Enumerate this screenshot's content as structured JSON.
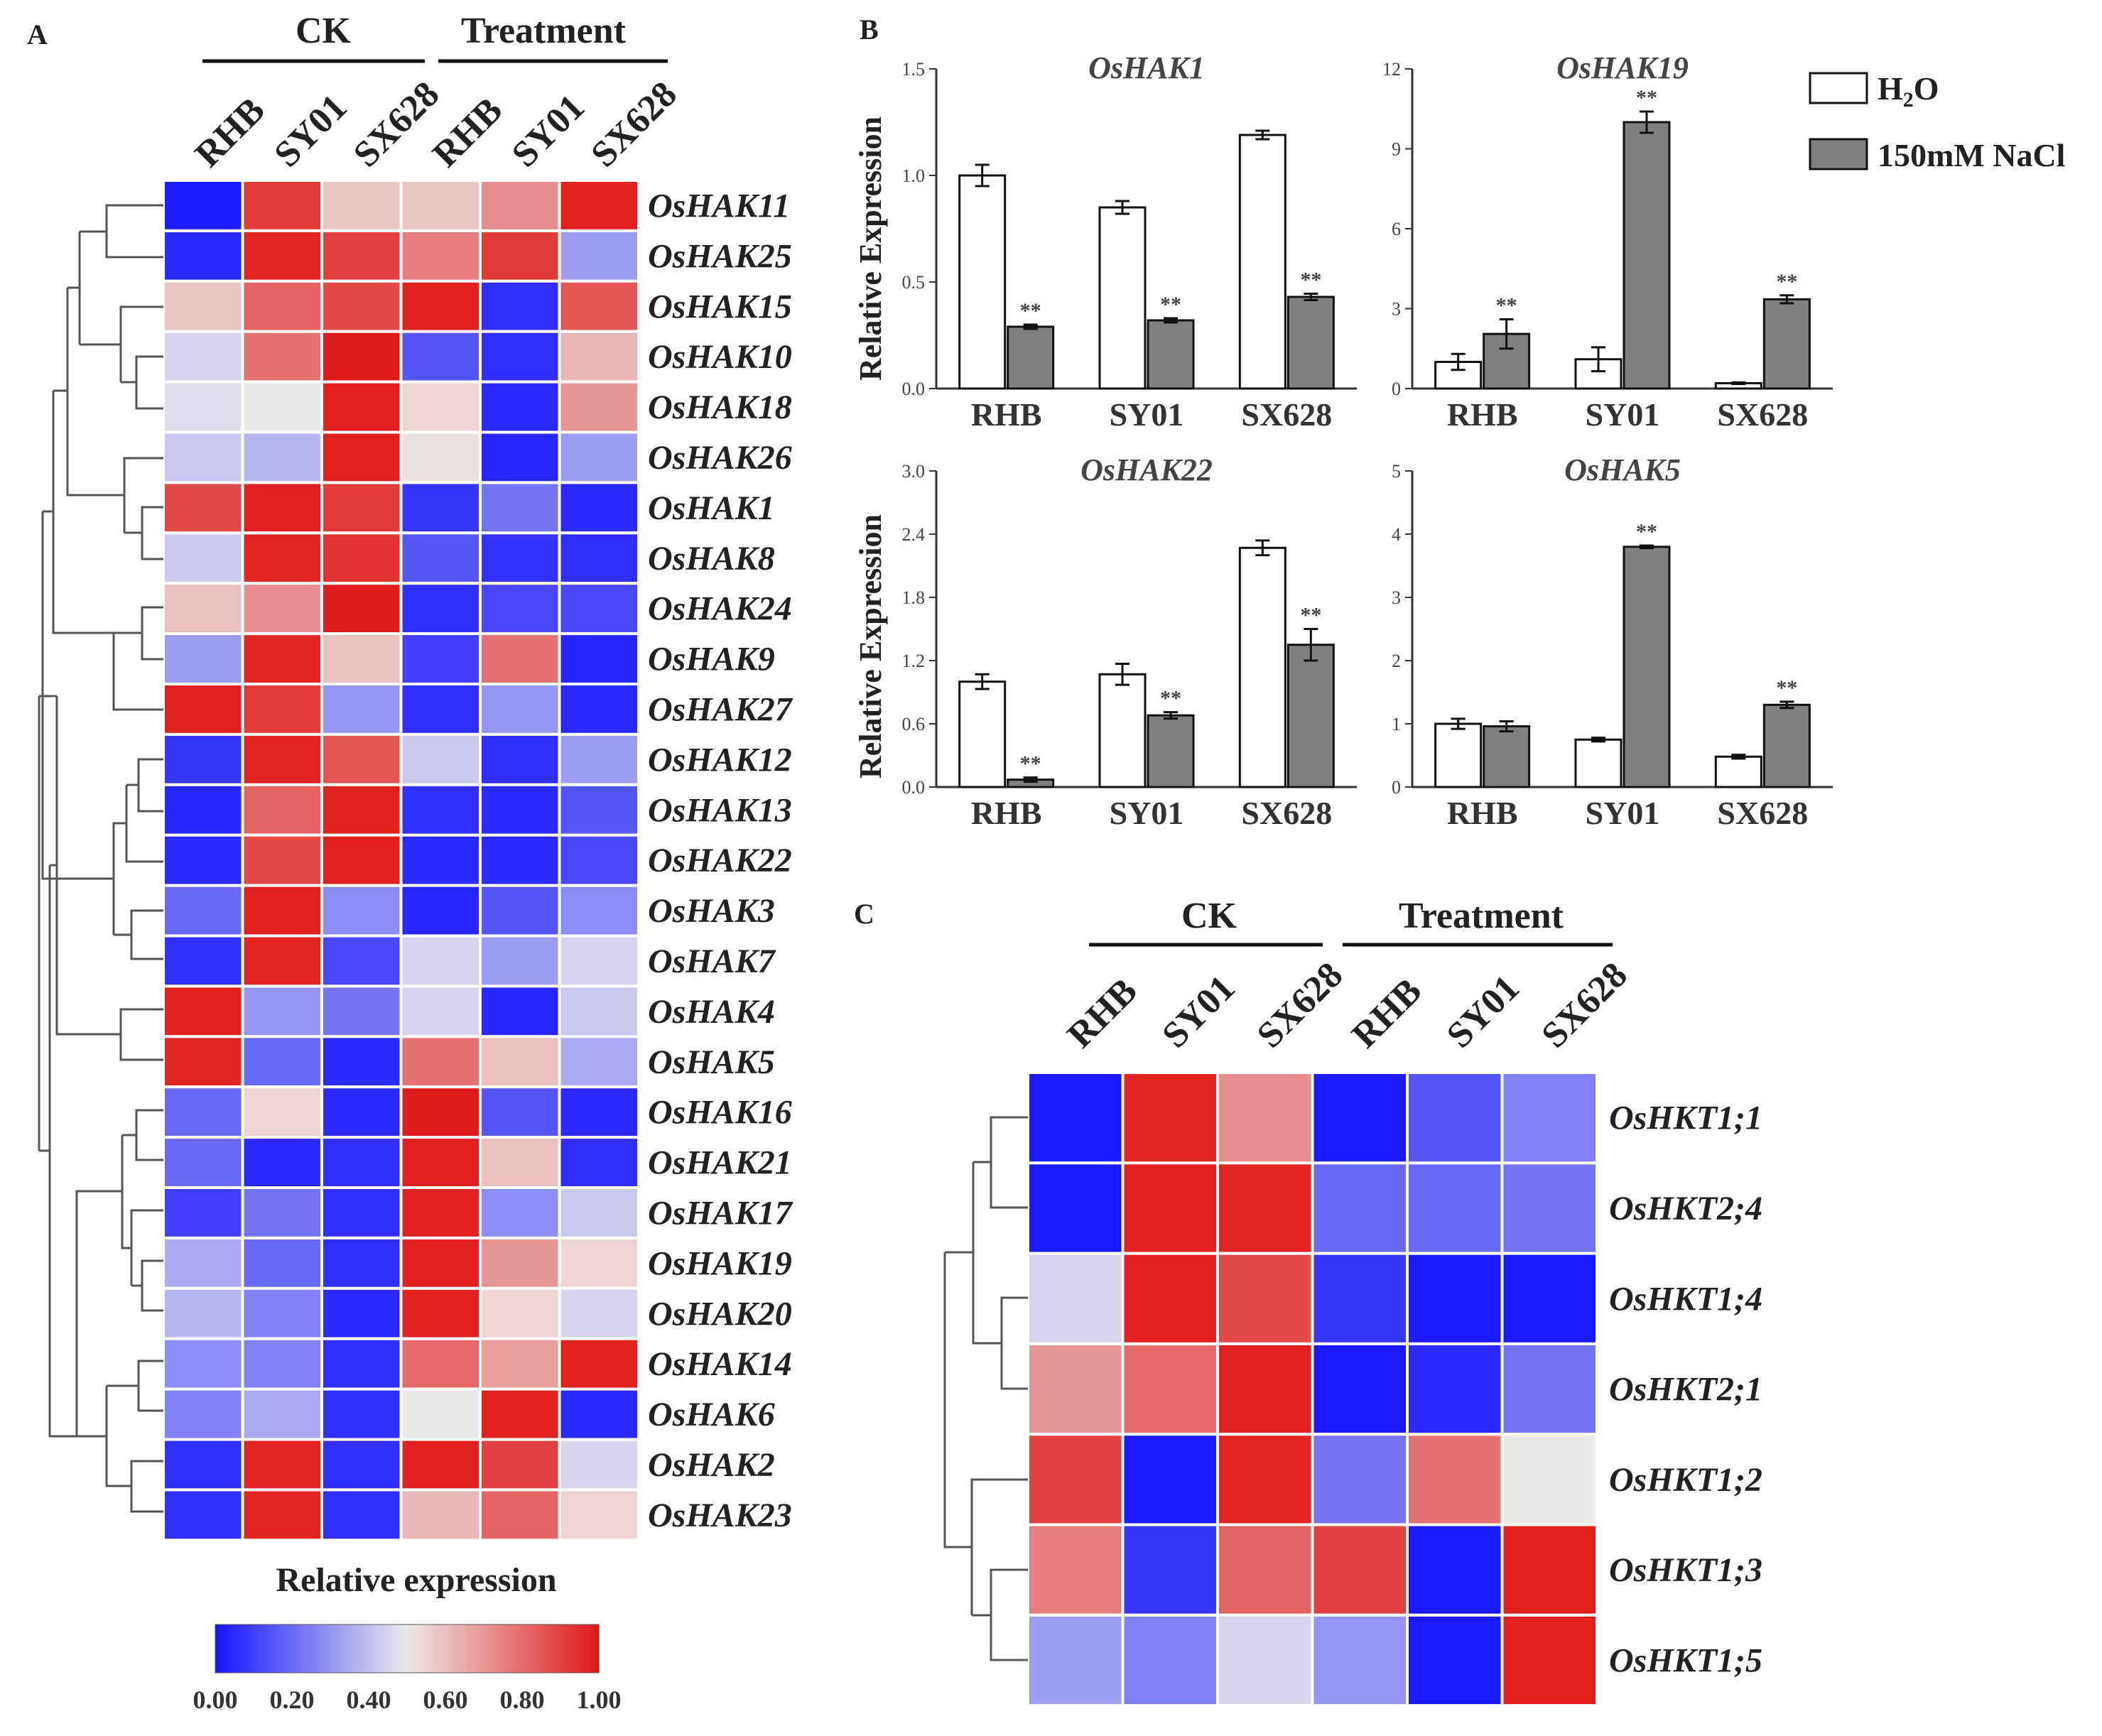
{
  "panels": {
    "a": "A",
    "b": "B",
    "c": "C"
  },
  "chart_data": [
    {
      "type": "heatmap",
      "panel": "A",
      "column_groups": [
        {
          "label": "CK"
        },
        {
          "label": "Treatment"
        }
      ],
      "columns": [
        "RHB",
        "SY01",
        "SX628",
        "RHB",
        "SY01",
        "SX628"
      ],
      "rows": [
        "OsHAK11",
        "OsHAK25",
        "OsHAK15",
        "OsHAK10",
        "OsHAK18",
        "OsHAK26",
        "OsHAK1",
        "OsHAK8",
        "OsHAK24",
        "OsHAK9",
        "OsHAK27",
        "OsHAK12",
        "OsHAK13",
        "OsHAK22",
        "OsHAK3",
        "OsHAK7",
        "OsHAK4",
        "OsHAK5",
        "OsHAK16",
        "OsHAK21",
        "OsHAK17",
        "OsHAK19",
        "OsHAK20",
        "OsHAK14",
        "OsHAK6",
        "OsHAK2",
        "OsHAK23"
      ],
      "values": [
        [
          0.02,
          0.92,
          0.58,
          0.58,
          0.72,
          0.98
        ],
        [
          0.05,
          0.97,
          0.9,
          0.75,
          0.92,
          0.32
        ],
        [
          0.58,
          0.82,
          0.88,
          0.98,
          0.06,
          0.85
        ],
        [
          0.45,
          0.78,
          0.99,
          0.15,
          0.06,
          0.62
        ],
        [
          0.47,
          0.5,
          0.98,
          0.55,
          0.05,
          0.7
        ],
        [
          0.42,
          0.38,
          0.98,
          0.52,
          0.04,
          0.32
        ],
        [
          0.88,
          0.98,
          0.92,
          0.08,
          0.22,
          0.05
        ],
        [
          0.42,
          0.97,
          0.93,
          0.15,
          0.07,
          0.06
        ],
        [
          0.6,
          0.72,
          0.99,
          0.06,
          0.12,
          0.12
        ],
        [
          0.32,
          0.97,
          0.6,
          0.1,
          0.78,
          0.04
        ],
        [
          0.98,
          0.92,
          0.3,
          0.06,
          0.3,
          0.05
        ],
        [
          0.08,
          0.97,
          0.85,
          0.42,
          0.06,
          0.32
        ],
        [
          0.04,
          0.82,
          0.98,
          0.06,
          0.05,
          0.15
        ],
        [
          0.05,
          0.88,
          0.98,
          0.05,
          0.05,
          0.12
        ],
        [
          0.2,
          0.98,
          0.28,
          0.04,
          0.15,
          0.28
        ],
        [
          0.06,
          0.97,
          0.12,
          0.45,
          0.32,
          0.45
        ],
        [
          0.98,
          0.3,
          0.22,
          0.45,
          0.04,
          0.42
        ],
        [
          0.97,
          0.2,
          0.05,
          0.78,
          0.6,
          0.35
        ],
        [
          0.2,
          0.55,
          0.05,
          0.99,
          0.15,
          0.05
        ],
        [
          0.2,
          0.05,
          0.06,
          0.98,
          0.6,
          0.06
        ],
        [
          0.1,
          0.22,
          0.06,
          0.98,
          0.28,
          0.42
        ],
        [
          0.35,
          0.2,
          0.06,
          0.98,
          0.7,
          0.55
        ],
        [
          0.38,
          0.25,
          0.05,
          0.98,
          0.55,
          0.45
        ],
        [
          0.28,
          0.25,
          0.06,
          0.8,
          0.68,
          0.98
        ],
        [
          0.25,
          0.35,
          0.06,
          0.5,
          0.98,
          0.05
        ],
        [
          0.06,
          0.97,
          0.06,
          0.98,
          0.9,
          0.45
        ],
        [
          0.06,
          0.97,
          0.06,
          0.62,
          0.82,
          0.55
        ]
      ],
      "colorbar": {
        "title": "Relative expression",
        "ticks": [
          "0.00",
          "0.20",
          "0.40",
          "0.60",
          "0.80",
          "1.00"
        ],
        "low": "#1515ff",
        "mid": "#ece9e9",
        "high": "#e01717"
      }
    },
    {
      "type": "bar",
      "panel": "B",
      "ylabel": "Relative Expression",
      "legend": [
        {
          "label": "H2O",
          "color": "#ffffff"
        },
        {
          "label": "150mM NaCl",
          "color": "#808080"
        }
      ],
      "categories": [
        "RHB",
        "SY01",
        "SX628"
      ],
      "subplots": [
        {
          "title": "OsHAK1",
          "ylim": [
            0,
            1.5
          ],
          "yticks": [
            "0.0",
            "0.5",
            "1.0",
            "1.5"
          ],
          "series": [
            {
              "name": "H2O",
              "values": [
                1.0,
                0.85,
                1.19
              ],
              "errors": [
                0.05,
                0.03,
                0.02
              ]
            },
            {
              "name": "150mM NaCl",
              "values": [
                0.29,
                0.32,
                0.43
              ],
              "errors": [
                0.01,
                0.01,
                0.015
              ]
            }
          ],
          "significance": [
            "**",
            "**",
            "**"
          ]
        },
        {
          "title": "OsHAK19",
          "ylim": [
            0,
            12
          ],
          "yticks": [
            "0",
            "3",
            "6",
            "9",
            "12"
          ],
          "series": [
            {
              "name": "H2O",
              "values": [
                1.0,
                1.1,
                0.2
              ],
              "errors": [
                0.3,
                0.45,
                0.03
              ]
            },
            {
              "name": "150mM NaCl",
              "values": [
                2.05,
                10.0,
                3.35
              ],
              "errors": [
                0.55,
                0.4,
                0.15
              ]
            }
          ],
          "significance": [
            "**",
            "**",
            "**"
          ]
        },
        {
          "title": "OsHAK22",
          "ylim": [
            0,
            3.0
          ],
          "yticks": [
            "0.0",
            "0.6",
            "1.2",
            "1.8",
            "2.4",
            "3.0"
          ],
          "series": [
            {
              "name": "H2O",
              "values": [
                1.0,
                1.07,
                2.27
              ],
              "errors": [
                0.07,
                0.1,
                0.07
              ]
            },
            {
              "name": "150mM NaCl",
              "values": [
                0.07,
                0.68,
                1.35
              ],
              "errors": [
                0.02,
                0.03,
                0.15
              ]
            }
          ],
          "significance": [
            "**",
            "**",
            "**"
          ]
        },
        {
          "title": "OsHAK5",
          "ylim": [
            0,
            5
          ],
          "yticks": [
            "0",
            "1",
            "2",
            "3",
            "4",
            "5"
          ],
          "series": [
            {
              "name": "H2O",
              "values": [
                1.0,
                0.75,
                0.48
              ],
              "errors": [
                0.08,
                0.03,
                0.03
              ]
            },
            {
              "name": "150mM NaCl",
              "values": [
                0.96,
                3.8,
                1.3
              ],
              "errors": [
                0.08,
                0.02,
                0.05
              ]
            }
          ],
          "significance": [
            "",
            "**",
            "**"
          ]
        }
      ]
    },
    {
      "type": "heatmap",
      "panel": "C",
      "column_groups": [
        {
          "label": "CK"
        },
        {
          "label": "Treatment"
        }
      ],
      "columns": [
        "RHB",
        "SY01",
        "SX628",
        "RHB",
        "SY01",
        "SX628"
      ],
      "rows": [
        "OsHKT1;1",
        "OsHKT2;4",
        "OsHKT1;4",
        "OsHKT2;1",
        "OsHKT1;2",
        "OsHKT1;3",
        "OsHKT1;5"
      ],
      "values": [
        [
          0.01,
          0.97,
          0.72,
          0.01,
          0.15,
          0.25
        ],
        [
          0.01,
          0.98,
          0.97,
          0.2,
          0.2,
          0.22
        ],
        [
          0.45,
          0.98,
          0.88,
          0.08,
          0.01,
          0.01
        ],
        [
          0.7,
          0.8,
          0.98,
          0.01,
          0.05,
          0.22
        ],
        [
          0.9,
          0.01,
          0.97,
          0.22,
          0.78,
          0.5
        ],
        [
          0.75,
          0.08,
          0.82,
          0.9,
          0.01,
          0.98
        ],
        [
          0.32,
          0.25,
          0.45,
          0.3,
          0.01,
          0.98
        ]
      ]
    }
  ]
}
